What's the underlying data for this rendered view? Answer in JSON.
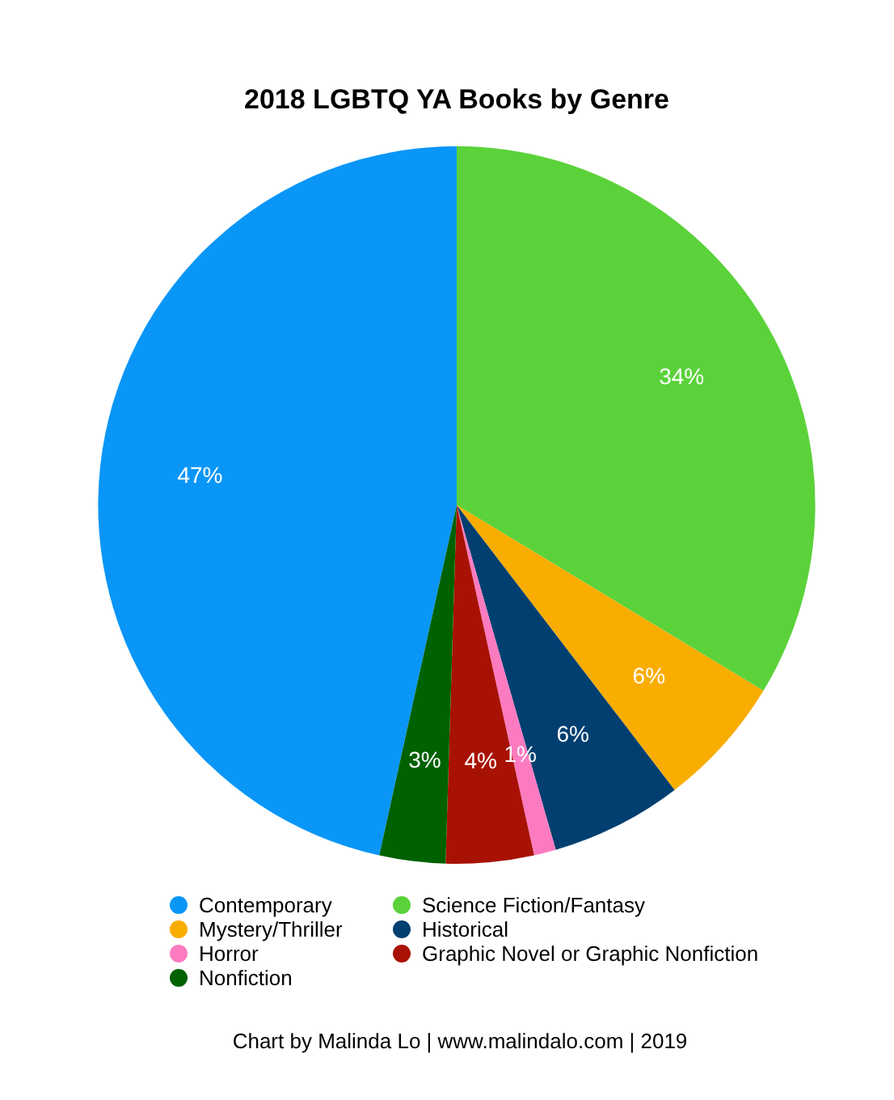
{
  "chart_data": {
    "type": "pie",
    "title": "2018 LGBTQ YA Books by Genre",
    "categories": [
      "Contemporary",
      "Science Fiction/Fantasy",
      "Mystery/Thriller",
      "Historical",
      "Horror",
      "Graphic Novel or Graphic Nonfiction",
      "Nonfiction"
    ],
    "values": [
      47,
      34,
      6,
      6,
      1,
      4,
      3
    ],
    "colors": [
      "#0a96f7",
      "#5bd23a",
      "#f9ad00",
      "#003f70",
      "#fc7bc0",
      "#a81204",
      "#006100"
    ],
    "value_labels": [
      "47%",
      "34%",
      "6%",
      "6%",
      "1%",
      "4%",
      "3%"
    ],
    "legend": "bottom",
    "annotations": [
      "Chart by Malinda Lo | www.malindalo.com | 2019"
    ]
  }
}
